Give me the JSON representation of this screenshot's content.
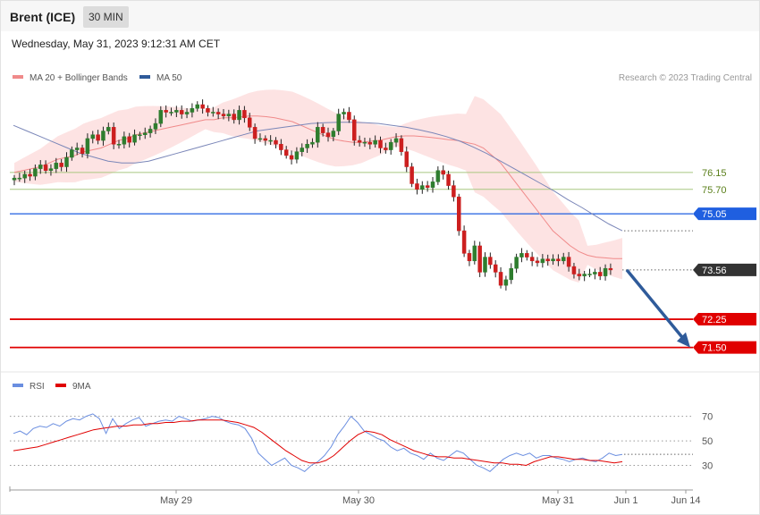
{
  "header": {
    "instrument": "Brent (ICE)",
    "timeframe": "30 MIN"
  },
  "datetime": "Wednesday, May 31, 2023 9:12:31 AM CET",
  "legend": {
    "ma_bb": "MA 20 + Bollinger Bands",
    "ma50": "MA 50"
  },
  "copyright": "Research © 2023 Trading Central",
  "colors": {
    "up": "#2e7d2e",
    "down": "#cc1f1f",
    "ma20": "#f08a8a",
    "ma50": "#7a86b8",
    "band": "#fde3e3",
    "blue": "#1f5fe0",
    "red": "#e00000",
    "green": "#a8c880",
    "current": "#333333",
    "arrow": "#2f5b9a",
    "rsi": "#6a8ee0",
    "rsi_ma": "#e00000"
  },
  "chart_data": [
    {
      "type": "candlestick",
      "ylim": [
        70.85,
        78.45
      ],
      "x_labels": [
        "May 29",
        "May 30",
        "May 31",
        "Jun 1",
        "Jun 14"
      ],
      "levels": [
        {
          "value": 76.15,
          "label": "76.15",
          "kind": "green"
        },
        {
          "value": 75.7,
          "label": "75.70",
          "kind": "green"
        },
        {
          "value": 75.05,
          "label": "75.05",
          "kind": "blue"
        },
        {
          "value": 73.56,
          "label": "73.56",
          "kind": "current"
        },
        {
          "value": 72.25,
          "label": "72.25",
          "kind": "red"
        },
        {
          "value": 71.5,
          "label": "71.50",
          "kind": "red"
        }
      ],
      "forecast": {
        "from": 73.56,
        "to": 71.5
      },
      "candles_close": [
        76.0,
        76.0,
        76.1,
        76.05,
        76.25,
        76.35,
        76.2,
        76.25,
        76.4,
        76.3,
        76.55,
        76.75,
        76.8,
        76.65,
        77.05,
        77.15,
        77.0,
        77.25,
        77.35,
        76.9,
        76.9,
        77.1,
        76.95,
        77.15,
        77.15,
        77.2,
        77.3,
        77.45,
        77.8,
        77.75,
        77.75,
        77.8,
        77.7,
        77.75,
        77.85,
        77.95,
        77.85,
        77.75,
        77.75,
        77.7,
        77.65,
        77.7,
        77.55,
        77.8,
        77.6,
        77.35,
        77.05,
        77.05,
        77.0,
        77.0,
        76.9,
        76.75,
        76.6,
        76.5,
        76.7,
        76.8,
        76.9,
        76.95,
        77.35,
        77.2,
        77.1,
        77.25,
        77.7,
        77.75,
        77.55,
        77.0,
        76.95,
        76.95,
        76.9,
        77.0,
        76.8,
        76.75,
        76.95,
        77.05,
        76.7,
        76.3,
        75.85,
        75.7,
        75.8,
        75.75,
        75.9,
        76.2,
        76.1,
        75.8,
        75.5,
        74.6,
        74.0,
        73.8,
        74.2,
        73.5,
        73.9,
        73.7,
        73.5,
        73.15,
        73.3,
        73.6,
        73.9,
        74.0,
        73.9,
        73.8,
        73.75,
        73.85,
        73.8,
        73.85,
        73.8,
        73.9,
        73.65,
        73.45,
        73.4,
        73.45,
        73.45,
        73.5,
        73.4,
        73.6,
        73.56
      ],
      "ma20": [
        76.15,
        76.2,
        76.25,
        76.3,
        76.4,
        76.5,
        76.55,
        76.6,
        76.7,
        76.75,
        76.8,
        76.9,
        77.0,
        77.05,
        77.15,
        77.2,
        77.25,
        77.3,
        77.35,
        77.4,
        77.45,
        77.5,
        77.55,
        77.55,
        77.6,
        77.6,
        77.62,
        77.65,
        77.65,
        77.63,
        77.6,
        77.55,
        77.5,
        77.4,
        77.3,
        77.2,
        77.1,
        77.02,
        76.98,
        76.95,
        76.95,
        76.98,
        77.0,
        77.05,
        77.1,
        77.12,
        77.12,
        77.1,
        77.08,
        77.05,
        77.02,
        77.0,
        76.95,
        76.9,
        76.8,
        76.6,
        76.4,
        76.1,
        75.8,
        75.5,
        75.2,
        74.9,
        74.6,
        74.4,
        74.2,
        74.05,
        73.95,
        73.9,
        73.88,
        73.86,
        73.86
      ],
      "ma50": [
        77.4,
        77.25,
        77.1,
        76.95,
        76.8,
        76.65,
        76.55,
        76.45,
        76.4,
        76.4,
        76.45,
        76.55,
        76.65,
        76.75,
        76.85,
        76.95,
        77.05,
        77.15,
        77.25,
        77.3,
        77.35,
        77.4,
        77.45,
        77.47,
        77.48,
        77.48,
        77.47,
        77.45,
        77.4,
        77.35,
        77.28,
        77.2,
        77.1,
        76.98,
        76.82,
        76.65,
        76.45,
        76.25,
        76.05,
        75.85,
        75.65,
        75.42,
        75.22,
        75.0,
        74.78,
        74.6
      ]
    },
    {
      "type": "line",
      "title": "",
      "legend": [
        "RSI",
        "9MA"
      ],
      "ylim": [
        10,
        85
      ],
      "levels": [
        {
          "value": 70,
          "label": "70"
        },
        {
          "value": 50,
          "label": "50"
        },
        {
          "value": 30,
          "label": "30"
        }
      ],
      "series": [
        {
          "name": "RSI",
          "values": [
            56,
            58,
            55,
            60,
            62,
            61,
            64,
            62,
            66,
            68,
            67,
            70,
            72,
            68,
            56,
            68,
            60,
            64,
            67,
            69,
            62,
            64,
            66,
            67,
            66,
            70,
            68,
            66,
            67,
            68,
            70,
            69,
            66,
            64,
            63,
            60,
            52,
            40,
            35,
            30,
            33,
            36,
            30,
            28,
            25,
            30,
            33,
            38,
            45,
            55,
            62,
            70,
            65,
            58,
            55,
            52,
            50,
            45,
            42,
            44,
            40,
            38,
            35,
            40,
            36,
            34,
            38,
            42,
            40,
            35,
            30,
            28,
            25,
            30,
            35,
            38,
            40,
            38,
            40,
            36,
            38,
            38,
            36,
            35,
            33,
            35,
            36,
            34,
            33,
            36,
            40,
            38,
            39
          ]
        },
        {
          "name": "9MA",
          "values": [
            42,
            43,
            44,
            45,
            47,
            49,
            51,
            53,
            55,
            57,
            59,
            60,
            61,
            62,
            62,
            63,
            63,
            64,
            64,
            65,
            65,
            66,
            66,
            67,
            67,
            67,
            67,
            66,
            65,
            63,
            61,
            57,
            52,
            47,
            42,
            38,
            34,
            32,
            32,
            34,
            38,
            44,
            50,
            55,
            58,
            57,
            55,
            51,
            48,
            45,
            42,
            40,
            38,
            37,
            37,
            36,
            36,
            35,
            34,
            33,
            32,
            32,
            31,
            31,
            30,
            33,
            35,
            37,
            37,
            36,
            35,
            35,
            34,
            34,
            33,
            32,
            33
          ]
        }
      ]
    }
  ]
}
